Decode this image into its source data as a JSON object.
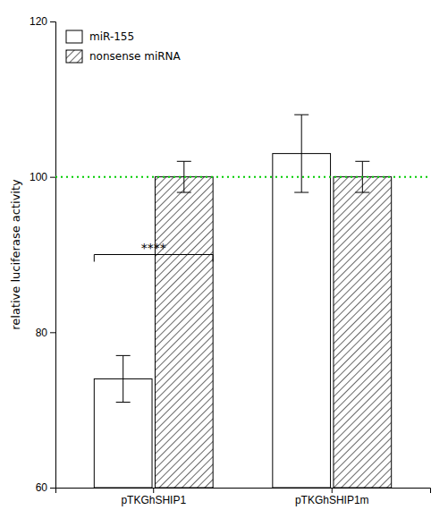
{
  "chart_data": {
    "type": "bar",
    "categories": [
      "pTKGhSHIP1",
      "pTKGhSHIP1m"
    ],
    "series": [
      {
        "name": "miR-155",
        "color": "#ffffff",
        "values": [
          74,
          103
        ],
        "errors": [
          3,
          5
        ]
      },
      {
        "name": "nonsense miRNA",
        "color": "#ffffff",
        "values": [
          100,
          100
        ],
        "errors": [
          2,
          2
        ]
      }
    ],
    "y_label": "relative luciferase activity",
    "ylim": [
      60,
      120
    ],
    "yticks": [
      60,
      80,
      100,
      120
    ],
    "legend": "upper left",
    "hline": {
      "y": 100,
      "color": "#00cc00"
    },
    "annotations": [
      {
        "text": "****",
        "category": 0,
        "y": 90
      }
    ]
  }
}
